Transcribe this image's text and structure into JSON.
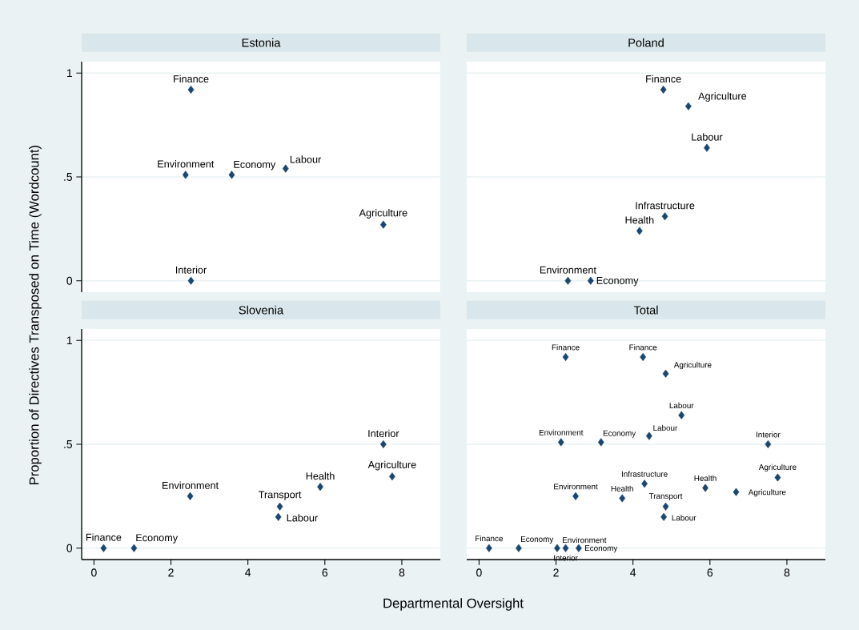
{
  "chart_data": [
    {
      "type": "scatter",
      "title": "Estonia",
      "ylabel": "Proportion of Directives Transposed on Time (Wordcount)",
      "xlim": [
        -0.32,
        9
      ],
      "ylim": [
        -0.055,
        1.055
      ],
      "xticks": [
        0,
        2,
        4,
        6,
        8
      ],
      "yticks": [
        {
          "value": 0,
          "label": "0"
        },
        {
          "value": 0.5,
          "label": ".5"
        },
        {
          "value": 1,
          "label": "1"
        }
      ],
      "tick_labels": "y",
      "grid": "y",
      "marker": "diamond",
      "series": [
        {
          "color": "#1a476f",
          "x": [
            2.52,
            2.38,
            3.58,
            4.98,
            7.52,
            2.52
          ],
          "values": [
            0.92,
            0.51,
            0.51,
            0.54,
            0.27,
            0.0
          ]
        }
      ],
      "annotations": [
        {
          "text": "Finance",
          "x": 2.52,
          "y": 0.92
        },
        {
          "text": "Environment",
          "x": 2.38,
          "y": 0.51
        },
        {
          "text": "Economy",
          "x": 3.58,
          "y": 0.51
        },
        {
          "text": "Labour",
          "x": 4.98,
          "y": 0.54
        },
        {
          "text": "Agriculture",
          "x": 7.52,
          "y": 0.27
        },
        {
          "text": "Interior",
          "x": 2.52,
          "y": 0.0
        }
      ]
    },
    {
      "type": "scatter",
      "title": "Poland",
      "xlim": [
        -0.32,
        9
      ],
      "ylim": [
        -0.055,
        1.055
      ],
      "xticks": [
        0,
        2,
        4,
        6,
        8
      ],
      "yticks": [
        0,
        0.5,
        1
      ],
      "tick_labels": false,
      "grid": "y",
      "marker": "diamond",
      "series": [
        {
          "color": "#1a476f",
          "x": [
            4.79,
            5.44,
            5.92,
            4.83,
            4.17,
            2.31,
            2.9
          ],
          "values": [
            0.92,
            0.84,
            0.64,
            0.31,
            0.24,
            0.0,
            0.0
          ]
        }
      ],
      "annotations": [
        {
          "text": "Finance",
          "x": 4.79,
          "y": 0.92
        },
        {
          "text": "Agriculture",
          "x": 5.44,
          "y": 0.84
        },
        {
          "text": "Labour",
          "x": 5.92,
          "y": 0.64
        },
        {
          "text": "Infrastructure",
          "x": 4.83,
          "y": 0.31
        },
        {
          "text": "Health",
          "x": 4.17,
          "y": 0.24
        },
        {
          "text": "Environment",
          "x": 2.31,
          "y": 0.0
        },
        {
          "text": "Economy",
          "x": 2.9,
          "y": 0.0
        }
      ]
    },
    {
      "type": "scatter",
      "title": "Slovenia",
      "xlabel": "Departmental Oversight",
      "xlim": [
        -0.32,
        9
      ],
      "ylim": [
        -0.055,
        1.055
      ],
      "xticks": [
        0,
        2,
        4,
        6,
        8
      ],
      "yticks": [
        {
          "value": 0,
          "label": "0"
        },
        {
          "value": 0.5,
          "label": ".5"
        },
        {
          "value": 1,
          "label": "1"
        }
      ],
      "grid": "y",
      "marker": "diamond",
      "series": [
        {
          "color": "#1a476f",
          "x": [
            7.52,
            7.75,
            5.88,
            2.5,
            4.83,
            4.79,
            0.25,
            1.04
          ],
          "values": [
            0.5,
            0.345,
            0.295,
            0.25,
            0.2,
            0.15,
            0.0,
            0.0
          ]
        }
      ],
      "annotations": [
        {
          "text": "Interior",
          "x": 7.52,
          "y": 0.5
        },
        {
          "text": "Agriculture",
          "x": 7.75,
          "y": 0.345
        },
        {
          "text": "Health",
          "x": 5.88,
          "y": 0.295
        },
        {
          "text": "Environment",
          "x": 2.5,
          "y": 0.25
        },
        {
          "text": "Transport",
          "x": 4.83,
          "y": 0.2
        },
        {
          "text": "Labour",
          "x": 4.79,
          "y": 0.15
        },
        {
          "text": "Finance",
          "x": 0.25,
          "y": 0.0
        },
        {
          "text": "Economy",
          "x": 1.04,
          "y": 0.0
        }
      ]
    },
    {
      "type": "scatter",
      "title": "Total",
      "xlim": [
        -0.32,
        9
      ],
      "ylim": [
        -0.055,
        1.055
      ],
      "xticks": [
        0,
        2,
        4,
        6,
        8
      ],
      "yticks": [
        0,
        0.5,
        1
      ],
      "tick_labels": "x",
      "grid": "y",
      "marker": "diamond",
      "series": [
        {
          "color": "#1a476f",
          "x": [
            2.25,
            4.26,
            4.85,
            5.26,
            2.13,
            3.17,
            4.42,
            7.51,
            7.76,
            4.3,
            5.88,
            6.68,
            2.51,
            3.72,
            4.85,
            4.8,
            0.26,
            1.03,
            2.03,
            2.25,
            2.59
          ],
          "values": [
            0.92,
            0.92,
            0.84,
            0.64,
            0.51,
            0.51,
            0.54,
            0.5,
            0.34,
            0.31,
            0.29,
            0.27,
            0.25,
            0.24,
            0.2,
            0.15,
            0.0,
            0.0,
            0.0,
            0.0,
            0.0
          ]
        }
      ],
      "annotations": [
        {
          "text": "Finance",
          "x": 2.25,
          "y": 0.92
        },
        {
          "text": "Finance",
          "x": 4.26,
          "y": 0.92
        },
        {
          "text": "Agriculture",
          "x": 4.85,
          "y": 0.84
        },
        {
          "text": "Labour",
          "x": 5.26,
          "y": 0.64
        },
        {
          "text": "Environment",
          "x": 2.13,
          "y": 0.51
        },
        {
          "text": "Economy",
          "x": 3.17,
          "y": 0.51
        },
        {
          "text": "Labour",
          "x": 4.42,
          "y": 0.54
        },
        {
          "text": "Interior",
          "x": 7.51,
          "y": 0.5
        },
        {
          "text": "Agriculture",
          "x": 7.76,
          "y": 0.34
        },
        {
          "text": "Infrastructure",
          "x": 4.3,
          "y": 0.31
        },
        {
          "text": "Health",
          "x": 5.88,
          "y": 0.29
        },
        {
          "text": "Agriculture",
          "x": 6.68,
          "y": 0.27
        },
        {
          "text": "Environment",
          "x": 2.51,
          "y": 0.25
        },
        {
          "text": "Health",
          "x": 3.72,
          "y": 0.24
        },
        {
          "text": "Transport",
          "x": 4.85,
          "y": 0.2
        },
        {
          "text": "Labour",
          "x": 4.8,
          "y": 0.15
        },
        {
          "text": "Finance",
          "x": 0.26,
          "y": 0.0
        },
        {
          "text": "Economy",
          "x": 1.03,
          "y": 0.0
        },
        {
          "text": "Environment",
          "x": 2.03,
          "y": 0.0
        },
        {
          "text": "Interior",
          "x": 2.25,
          "y": 0.0
        },
        {
          "text": "Economy",
          "x": 2.59,
          "y": 0.0
        }
      ]
    }
  ]
}
